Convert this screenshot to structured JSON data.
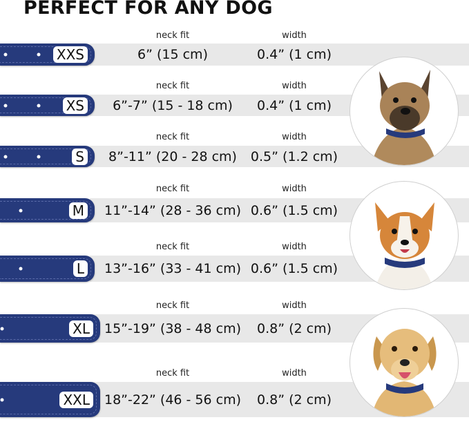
{
  "title": "PERFECT FOR ANY DOG",
  "neck_label": "neck fit",
  "width_label": "width",
  "colors": {
    "strap": "#263a7c",
    "band": "#e8e8e8"
  },
  "sizes": [
    {
      "size": "XXS",
      "neck": "6” (15 cm)",
      "width": "0.4” (1 cm)"
    },
    {
      "size": "XS",
      "neck": "6”-7” (15 - 18 cm)",
      "width": "0.4” (1 cm)"
    },
    {
      "size": "S",
      "neck": "8”-11” (20 - 28 cm)",
      "width": "0.5” (1.2 cm)"
    },
    {
      "size": "M",
      "neck": "11”-14” (28 - 36 cm)",
      "width": "0.6” (1.5 cm)"
    },
    {
      "size": "L",
      "neck": "13”-16” (33 - 41 cm)",
      "width": "0.6” (1.5 cm)"
    },
    {
      "size": "XL",
      "neck": "15”-19” (38 - 48 cm)",
      "width": "0.8” (2 cm)"
    },
    {
      "size": "XXL",
      "neck": "18”-22” (46 - 56 cm)",
      "width": "0.8” (2 cm)"
    }
  ],
  "images": [
    "terrier-dog",
    "corgi-dog",
    "labrador-dog"
  ]
}
